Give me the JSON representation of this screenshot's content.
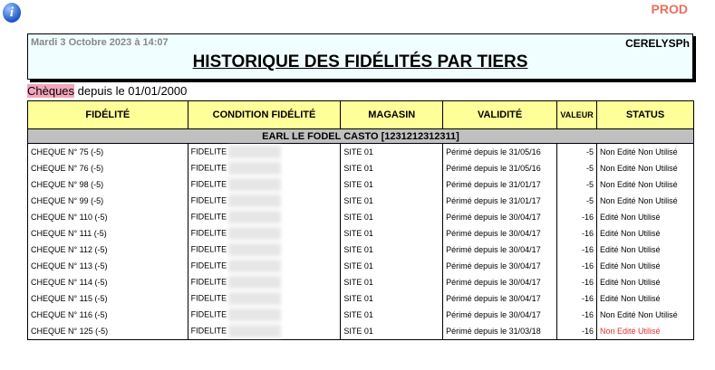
{
  "header": {
    "env": "PROD",
    "date": "Mardi 3 Octobre 2023 à 14:07",
    "site": "CERELYSPh",
    "title": "HISTORIQUE DES FIDÉLITÉS PAR TIERS"
  },
  "subtitle": {
    "type": "Chèques",
    "rest": " depuis le 01/01/2000"
  },
  "table": {
    "columns": [
      "FIDÉLITÉ",
      "CONDITION FIDÉLITÉ",
      "MAGASIN",
      "VALIDITÉ",
      "VALEUR",
      "STATUS"
    ],
    "group": "EARL LE FODEL CASTO [1231212312311]",
    "rows": [
      [
        "CHEQUE N° 75 (-5)",
        "FIDELITE",
        "SITE 01",
        "Périmé depuis le 31/05/16",
        "-5",
        "Non Edité Non Utilisé"
      ],
      [
        "CHEQUE N° 76 (-5)",
        "FIDELITE",
        "SITE 01",
        "Périmé depuis le 31/05/16",
        "-5",
        "Non Edité Non Utilisé"
      ],
      [
        "CHEQUE N° 98 (-5)",
        "FIDELITE",
        "SITE 01",
        "Périmé depuis le 31/01/17",
        "-5",
        "Non Edité Non Utilisé"
      ],
      [
        "CHEQUE N° 99 (-5)",
        "FIDELITE",
        "SITE 01",
        "Périmé depuis le 31/01/17",
        "-5",
        "Non Edité Non Utilisé"
      ],
      [
        "CHEQUE N° 110 (-5)",
        "FIDELITE",
        "SITE 01",
        "Périmé depuis le 30/04/17",
        "-16",
        "Edité Non Utilisé"
      ],
      [
        "CHEQUE N° 111 (-5)",
        "FIDELITE",
        "SITE 01",
        "Périmé depuis le 30/04/17",
        "-16",
        "Edité Non Utilisé"
      ],
      [
        "CHEQUE N° 112 (-5)",
        "FIDELITE",
        "SITE 01",
        "Périmé depuis le 30/04/17",
        "-16",
        "Edité Non Utilisé"
      ],
      [
        "CHEQUE N° 113 (-5)",
        "FIDELITE",
        "SITE 01",
        "Périmé depuis le 30/04/17",
        "-16",
        "Edité Non Utilisé"
      ],
      [
        "CHEQUE N° 114 (-5)",
        "FIDELITE",
        "SITE 01",
        "Périmé depuis le 30/04/17",
        "-16",
        "Edité Non Utilisé"
      ],
      [
        "CHEQUE N° 115 (-5)",
        "FIDELITE",
        "SITE 01",
        "Périmé depuis le 30/04/17",
        "-16",
        "Edité Non Utilisé"
      ],
      [
        "CHEQUE N° 116 (-5)",
        "FIDELITE",
        "SITE 01",
        "Périmé depuis le 30/04/17",
        "-16",
        "Non Edité Non Utilisé"
      ],
      [
        "CHEQUE N° 125 (-5)",
        "FIDELITE",
        "SITE 01",
        "Périmé depuis le 31/03/18",
        "-16",
        "Non Edité Utilisé"
      ]
    ],
    "highlight_status": "Non Edité Utilisé",
    "highlight_color": "#e03030"
  }
}
